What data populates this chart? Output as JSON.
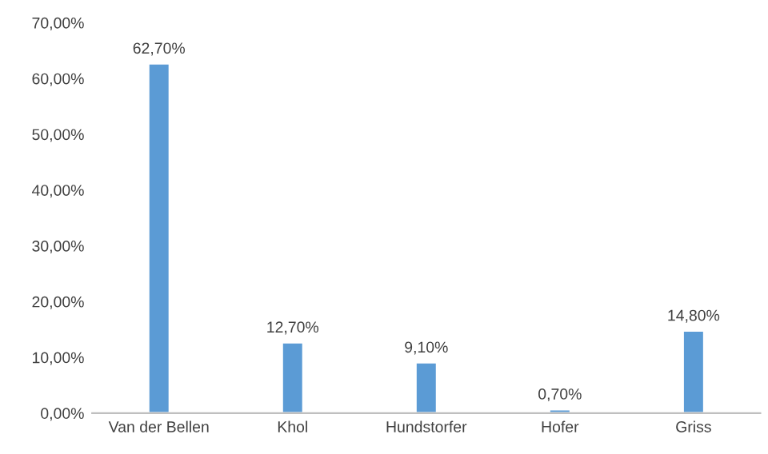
{
  "chart_data": {
    "type": "bar",
    "categories": [
      "Van der Bellen",
      "Khol",
      "Hundstorfer",
      "Hofer",
      "Griss"
    ],
    "values": [
      62.7,
      12.7,
      9.1,
      0.7,
      14.8
    ],
    "value_labels": [
      "62,70%",
      "12,70%",
      "9,10%",
      "0,70%",
      "14,80%"
    ],
    "color": "#5b9bd5",
    "ylim": [
      0,
      70
    ],
    "yticks": [
      {
        "value": 0,
        "label": "0,00%"
      },
      {
        "value": 10,
        "label": "10,00%"
      },
      {
        "value": 20,
        "label": "20,00%"
      },
      {
        "value": 30,
        "label": "30,00%"
      },
      {
        "value": 40,
        "label": "40,00%"
      },
      {
        "value": 50,
        "label": "50,00%"
      },
      {
        "value": 60,
        "label": "60,00%"
      },
      {
        "value": 70,
        "label": "70,00%"
      }
    ]
  }
}
